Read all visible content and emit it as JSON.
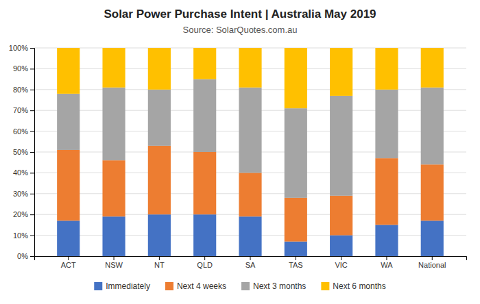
{
  "chart_data": {
    "type": "bar",
    "stacked": true,
    "title": "Solar Power Purchase Intent | Australia May 2019",
    "subtitle": "Source: SolarQuotes.com.au",
    "categories": [
      "ACT",
      "NSW",
      "NT",
      "QLD",
      "SA",
      "TAS",
      "VIC",
      "WA",
      "National"
    ],
    "series": [
      {
        "name": "Immediately",
        "color": "#4472C4",
        "values": [
          17,
          19,
          20,
          20,
          19,
          7,
          10,
          15,
          17
        ]
      },
      {
        "name": "Next 4 weeks",
        "color": "#ED7D31",
        "values": [
          34,
          27,
          33,
          30,
          21,
          21,
          19,
          32,
          27
        ]
      },
      {
        "name": "Next 3 months",
        "color": "#A5A5A5",
        "values": [
          27,
          35,
          27,
          35,
          41,
          43,
          48,
          33,
          37
        ]
      },
      {
        "name": "Next 6 months",
        "color": "#FFC000",
        "values": [
          22,
          19,
          20,
          15,
          19,
          29,
          23,
          20,
          19
        ]
      }
    ],
    "ylim": [
      0,
      100
    ],
    "yticks": [
      {
        "value": 0,
        "label": "0%"
      },
      {
        "value": 10,
        "label": "10%"
      },
      {
        "value": 20,
        "label": "20%"
      },
      {
        "value": 30,
        "label": "30%"
      },
      {
        "value": 40,
        "label": "40%"
      },
      {
        "value": 50,
        "label": "50%"
      },
      {
        "value": 60,
        "label": "60%"
      },
      {
        "value": 70,
        "label": "70%"
      },
      {
        "value": 80,
        "label": "80%"
      },
      {
        "value": 90,
        "label": "90%"
      },
      {
        "value": 100,
        "label": "100%"
      }
    ],
    "grid": true,
    "legend": "bottom"
  }
}
